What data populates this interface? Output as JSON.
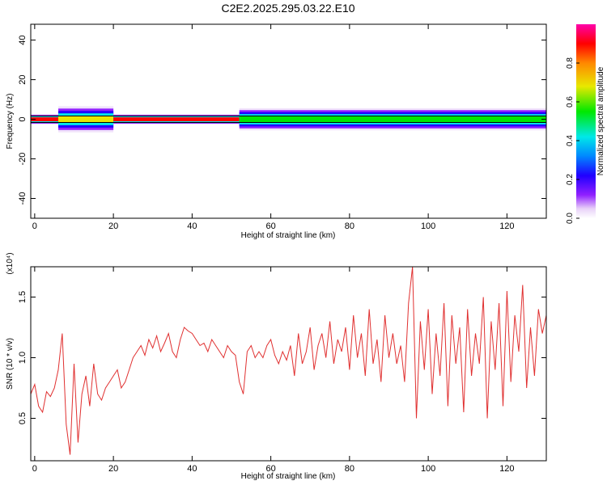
{
  "title": "C2E2.2025.295.03.22.E10",
  "chart_data": [
    {
      "type": "heatmap",
      "xlabel": "Height of straight line (km)",
      "ylabel": "Frequency (Hz)",
      "xlim": [
        -1,
        130
      ],
      "ylim": [
        -50,
        48
      ],
      "x_ticks": [
        0,
        20,
        40,
        60,
        80,
        100,
        120
      ],
      "y_ticks": [
        40,
        20,
        0,
        -20,
        -40
      ],
      "band": {
        "center_hz": 0,
        "description_segments": [
          {
            "x_start": -1,
            "x_end": 6,
            "peak_amplitude": 0.95,
            "halfwidth_hz": 2
          },
          {
            "x_start": 6,
            "x_end": 20,
            "peak_amplitude": 0.75,
            "halfwidth_hz": 6
          },
          {
            "x_start": 20,
            "x_end": 52,
            "peak_amplitude": 0.98,
            "halfwidth_hz": 2
          },
          {
            "x_start": 52,
            "x_end": 130,
            "peak_amplitude": 0.6,
            "halfwidth_hz": 5
          }
        ]
      },
      "colorbar": {
        "label": "Normalized spectral amplitude",
        "range": [
          0,
          1
        ],
        "ticks": [
          "0.0",
          "0.2",
          "0.4",
          "0.6",
          "0.8"
        ],
        "tick_values": [
          0,
          0.2,
          0.4,
          0.6,
          0.8
        ]
      }
    },
    {
      "type": "line",
      "xlabel": "Height of straight line (km)",
      "ylabel": "SNR (10 * v/v)",
      "scale_label": "(x10⁴)",
      "xlim": [
        -1,
        130
      ],
      "ylim": [
        0.15,
        1.75
      ],
      "x_ticks": [
        0,
        20,
        40,
        60,
        80,
        100,
        120
      ],
      "y_ticks": [
        "0.5",
        "1.0",
        "1.5"
      ],
      "y_tick_values": [
        0.5,
        1.0,
        1.5
      ],
      "series": [
        {
          "color": "#e03030",
          "x": [
            -1,
            0,
            1,
            2,
            3,
            4,
            5,
            6,
            7,
            8,
            9,
            10,
            11,
            12,
            13,
            14,
            15,
            16,
            17,
            18,
            19,
            20,
            21,
            22,
            23,
            24,
            25,
            26,
            27,
            28,
            29,
            30,
            31,
            32,
            33,
            34,
            35,
            36,
            37,
            38,
            39,
            40,
            41,
            42,
            43,
            44,
            45,
            46,
            47,
            48,
            49,
            50,
            51,
            52,
            53,
            54,
            55,
            56,
            57,
            58,
            59,
            60,
            61,
            62,
            63,
            64,
            65,
            66,
            67,
            68,
            69,
            70,
            71,
            72,
            73,
            74,
            75,
            76,
            77,
            78,
            79,
            80,
            81,
            82,
            83,
            84,
            85,
            86,
            87,
            88,
            89,
            90,
            91,
            92,
            93,
            94,
            95,
            96,
            97,
            98,
            99,
            100,
            101,
            102,
            103,
            104,
            105,
            106,
            107,
            108,
            109,
            110,
            111,
            112,
            113,
            114,
            115,
            116,
            117,
            118,
            119,
            120,
            121,
            122,
            123,
            124,
            125,
            126,
            127,
            128,
            129,
            130
          ],
          "y": [
            0.7,
            0.78,
            0.6,
            0.55,
            0.72,
            0.68,
            0.75,
            0.9,
            1.2,
            0.45,
            0.2,
            0.95,
            0.3,
            0.7,
            0.85,
            0.6,
            0.95,
            0.7,
            0.65,
            0.75,
            0.8,
            0.85,
            0.9,
            0.75,
            0.8,
            0.9,
            1.0,
            1.05,
            1.1,
            1.02,
            1.15,
            1.08,
            1.18,
            1.05,
            1.12,
            1.2,
            1.05,
            1.0,
            1.15,
            1.25,
            1.22,
            1.2,
            1.15,
            1.1,
            1.12,
            1.05,
            1.15,
            1.1,
            1.05,
            1.0,
            1.1,
            1.05,
            1.02,
            0.8,
            0.7,
            1.05,
            1.1,
            1.0,
            1.05,
            1.0,
            1.1,
            1.15,
            1.02,
            0.95,
            1.05,
            0.98,
            1.1,
            0.85,
            1.2,
            0.95,
            1.05,
            1.25,
            0.9,
            1.1,
            1.2,
            1.0,
            1.3,
            0.95,
            1.15,
            1.05,
            1.25,
            0.9,
            1.35,
            1.0,
            1.2,
            0.85,
            1.4,
            0.95,
            1.15,
            0.8,
            1.35,
            1.0,
            1.2,
            0.95,
            1.1,
            0.8,
            1.45,
            1.75,
            0.5,
            1.3,
            0.9,
            1.4,
            0.7,
            1.2,
            0.85,
            1.45,
            0.6,
            1.35,
            0.95,
            1.25,
            0.55,
            1.4,
            0.85,
            1.2,
            0.95,
            1.5,
            0.5,
            1.3,
            0.9,
            1.45,
            0.6,
            1.55,
            0.8,
            1.35,
            1.05,
            1.6,
            0.75,
            1.25,
            0.85,
            1.4,
            1.2,
            1.35
          ]
        }
      ]
    }
  ],
  "colors": {
    "line": "#e03030",
    "band_edge": "#000000"
  }
}
